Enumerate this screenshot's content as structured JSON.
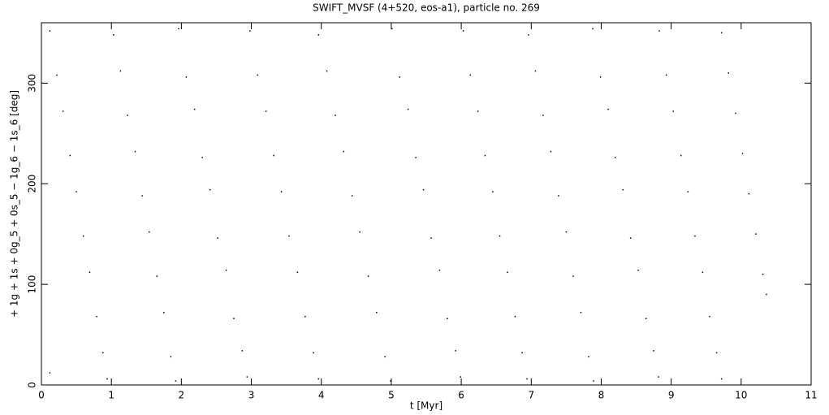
{
  "chart_data": {
    "type": "scatter",
    "title": "SWIFT_MVSF (4+520, eos-a1), particle no. 269",
    "x_label": "t [Myr]",
    "y_label": "+ 1g + 1s + 0g_5 + 0s_5 − 1g_6 − 1s_6 [deg]",
    "color": "#000000",
    "xlim": [
      0,
      11
    ],
    "ylim": [
      0,
      360
    ],
    "xticks": [
      0,
      1,
      2,
      3,
      4,
      5,
      6,
      7,
      8,
      9,
      10,
      11
    ],
    "yticks": [
      0,
      100,
      200,
      300
    ],
    "x": [
      0.12,
      0.22,
      0.31,
      0.41,
      0.5,
      0.6,
      0.69,
      0.79,
      0.88,
      0.94,
      1.03,
      1.13,
      1.23,
      1.34,
      1.44,
      1.54,
      1.65,
      1.75,
      1.85,
      1.92,
      1.96,
      2.07,
      2.19,
      2.3,
      2.41,
      2.52,
      2.64,
      2.75,
      2.87,
      2.94,
      2.98,
      3.09,
      3.21,
      3.32,
      3.43,
      3.54,
      3.66,
      3.77,
      3.89,
      3.96,
      3.96,
      4.08,
      4.2,
      4.32,
      4.44,
      4.55,
      4.67,
      4.79,
      4.91,
      4.99,
      5.01,
      5.12,
      5.24,
      5.35,
      5.46,
      5.57,
      5.69,
      5.8,
      5.92,
      5.99,
      6.03,
      6.13,
      6.24,
      6.34,
      6.45,
      6.55,
      6.66,
      6.77,
      6.87,
      6.94,
      6.96,
      7.06,
      7.17,
      7.28,
      7.39,
      7.5,
      7.6,
      7.71,
      7.82,
      7.89,
      7.88,
      7.99,
      8.1,
      8.2,
      8.31,
      8.42,
      8.53,
      8.64,
      8.75,
      8.82,
      8.83,
      8.93,
      9.03,
      9.14,
      9.24,
      9.34,
      9.45,
      9.55,
      9.65,
      9.72,
      9.72,
      9.82,
      9.92,
      10.02,
      10.11,
      10.21,
      10.31,
      10.36,
      0.12
    ],
    "values": [
      352,
      308,
      272,
      228,
      192,
      148,
      112,
      68,
      32,
      6,
      348,
      312,
      268,
      232,
      188,
      152,
      108,
      72,
      28,
      4,
      354,
      306,
      274,
      226,
      194,
      146,
      114,
      66,
      34,
      8,
      352,
      308,
      272,
      228,
      192,
      148,
      112,
      68,
      32,
      6,
      348,
      312,
      268,
      232,
      188,
      152,
      108,
      72,
      28,
      4,
      354,
      306,
      274,
      226,
      194,
      146,
      114,
      66,
      34,
      8,
      352,
      308,
      272,
      228,
      192,
      148,
      112,
      68,
      32,
      6,
      348,
      312,
      268,
      232,
      188,
      152,
      108,
      72,
      28,
      4,
      354,
      306,
      274,
      226,
      194,
      146,
      114,
      66,
      34,
      8,
      352,
      308,
      272,
      228,
      192,
      148,
      112,
      68,
      32,
      6,
      350,
      310,
      270,
      230,
      190,
      150,
      110,
      90,
      12
    ]
  }
}
